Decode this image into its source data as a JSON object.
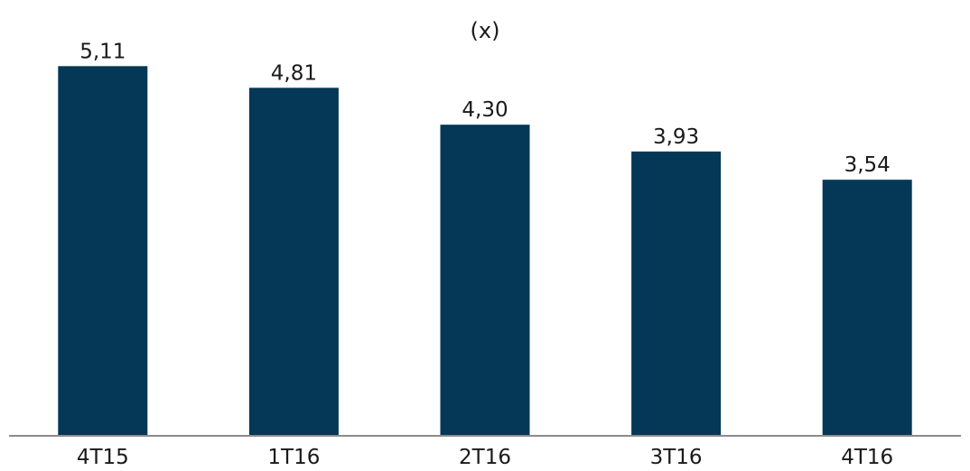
{
  "chart_data": {
    "type": "bar",
    "title": "(x)",
    "xlabel": "",
    "ylabel": "",
    "categories": [
      "4T15",
      "1T16",
      "2T16",
      "3T16",
      "4T16"
    ],
    "values": [
      5.11,
      4.81,
      4.3,
      3.93,
      3.54
    ],
    "value_labels": [
      "5,11",
      "4,81",
      "4,30",
      "3,93",
      "3,54"
    ],
    "ylim": [
      0,
      5.5
    ],
    "grid": false,
    "legend": "none",
    "colors": {
      "bar": "#053756",
      "axis": "#8c8c8c",
      "text": "#1a1a1a"
    }
  }
}
